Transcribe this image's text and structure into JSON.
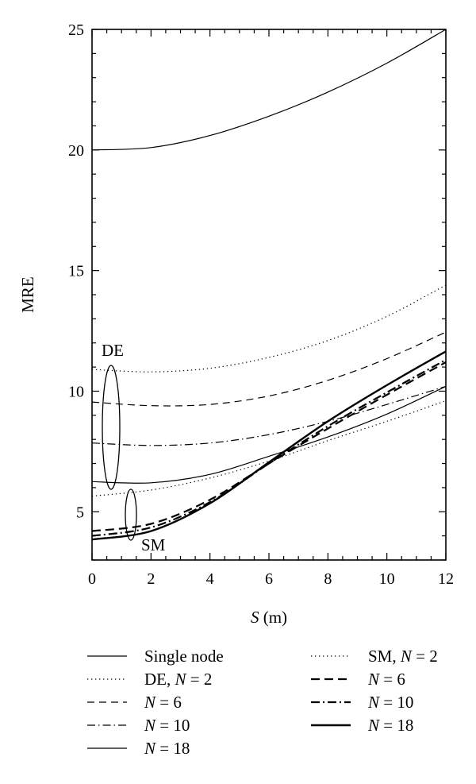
{
  "chart_data": {
    "type": "line",
    "xlabel": "S (m)",
    "ylabel": "MRE",
    "xlim": [
      0,
      12
    ],
    "ylim": [
      3,
      25
    ],
    "xticks": [
      0,
      2,
      4,
      6,
      8,
      10,
      12
    ],
    "yticks": [
      5,
      10,
      15,
      20,
      25
    ],
    "grid": false,
    "group_labels": [
      "DE",
      "SM"
    ],
    "series": [
      {
        "name": "Single node",
        "group": "",
        "style": "solid",
        "width": 1.2,
        "x": [
          0,
          2,
          4,
          6,
          8,
          10,
          12
        ],
        "y": [
          20.0,
          20.1,
          20.6,
          21.4,
          22.4,
          23.6,
          25.0
        ]
      },
      {
        "name": "DE, N = 2",
        "group": "DE",
        "style": "dotted",
        "width": 1.2,
        "x": [
          0,
          2,
          4,
          6,
          8,
          10,
          12
        ],
        "y": [
          10.9,
          10.8,
          10.95,
          11.4,
          12.1,
          13.1,
          14.4
        ]
      },
      {
        "name": "N = 6",
        "group": "DE",
        "style": "dashed",
        "width": 1.2,
        "x": [
          0,
          2,
          4,
          6,
          8,
          10,
          12
        ],
        "y": [
          9.55,
          9.4,
          9.45,
          9.8,
          10.45,
          11.35,
          12.45
        ]
      },
      {
        "name": "N = 10",
        "group": "DE",
        "style": "dashdot",
        "width": 1.2,
        "x": [
          0,
          2,
          4,
          6,
          8,
          10,
          12
        ],
        "y": [
          7.85,
          7.75,
          7.85,
          8.2,
          8.75,
          9.45,
          10.2
        ]
      },
      {
        "name": "N = 18",
        "group": "DE",
        "style": "solid",
        "width": 1.2,
        "x": [
          0,
          2,
          4,
          6,
          8,
          10,
          12
        ],
        "y": [
          6.25,
          6.2,
          6.55,
          7.3,
          8.1,
          9.05,
          10.2
        ]
      },
      {
        "name": "SM, N = 2",
        "group": "SM",
        "style": "dotted",
        "width": 1.2,
        "x": [
          0,
          2,
          4,
          6,
          8,
          10,
          12
        ],
        "y": [
          5.65,
          5.9,
          6.4,
          7.1,
          7.95,
          8.75,
          9.6
        ]
      },
      {
        "name": "N = 6",
        "group": "SM",
        "style": "dashed",
        "width": 2.2,
        "x": [
          0,
          2,
          4,
          6,
          8,
          10,
          12
        ],
        "y": [
          4.2,
          4.5,
          5.5,
          7.0,
          8.45,
          9.85,
          11.2
        ]
      },
      {
        "name": "N = 10",
        "group": "SM",
        "style": "dashdot",
        "width": 2.2,
        "x": [
          0,
          2,
          4,
          6,
          8,
          10,
          12
        ],
        "y": [
          4.0,
          4.35,
          5.4,
          7.0,
          8.55,
          9.95,
          11.3
        ]
      },
      {
        "name": "N = 18",
        "group": "SM",
        "style": "solid",
        "width": 2.4,
        "x": [
          0,
          2,
          4,
          6,
          8,
          10,
          12
        ],
        "y": [
          3.85,
          4.2,
          5.35,
          7.05,
          8.75,
          10.25,
          11.65
        ]
      }
    ],
    "legend": {
      "placement": "bottom",
      "columns": [
        [
          {
            "label": "Single node",
            "style": "solid",
            "width": 1.2
          },
          {
            "label": "DE, N = 2",
            "style": "dotted",
            "width": 1.2
          },
          {
            "label": "N = 6",
            "style": "dashed",
            "width": 1.2
          },
          {
            "label": "N = 10",
            "style": "dashdot",
            "width": 1.2
          },
          {
            "label": "N = 18",
            "style": "solid",
            "width": 1.2
          }
        ],
        [
          {
            "label": "SM, N = 2",
            "style": "dotted",
            "width": 1.2
          },
          {
            "label": "N = 6",
            "style": "dashed",
            "width": 2.2
          },
          {
            "label": "N = 10",
            "style": "dashdot",
            "width": 2.2
          },
          {
            "label": "N = 18",
            "style": "solid",
            "width": 2.4
          }
        ]
      ]
    }
  }
}
